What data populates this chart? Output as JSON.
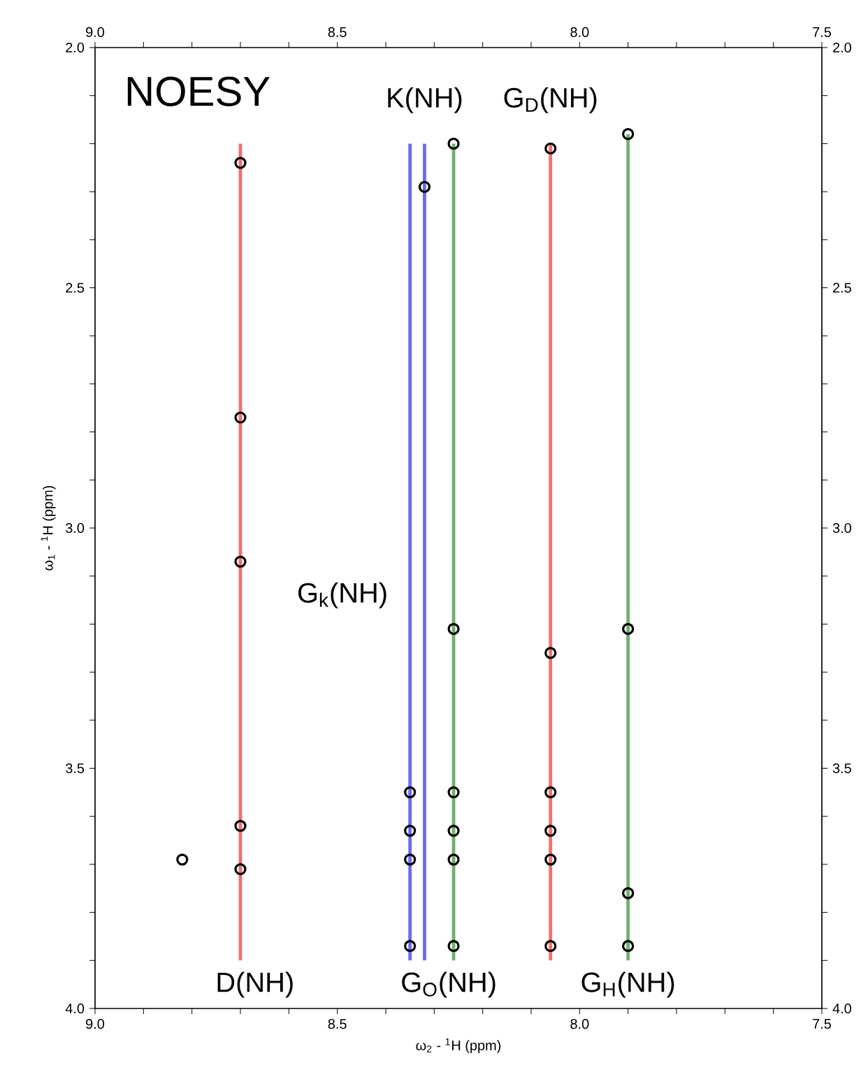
{
  "chart_data": {
    "type": "scatter",
    "title": "NOESY",
    "xlabel": "ω$_{2}$ - $^{1}$H  (ppm)",
    "ylabel": "ω$_{1}$ - $^{1}$H (ppm)",
    "xlim": [
      9.0,
      7.5
    ],
    "ylim": [
      4.0,
      2.0
    ],
    "x2lim": [
      9.0,
      7.5
    ],
    "y2lim": [
      4.0,
      2.0
    ],
    "xticks": [
      {
        "value": 9.0,
        "label": "9.0"
      },
      {
        "value": 8.9,
        "label": null
      },
      {
        "value": 8.8,
        "label": null
      },
      {
        "value": 8.7,
        "label": null
      },
      {
        "value": 8.6,
        "label": null
      },
      {
        "value": 8.5,
        "label": "8.5"
      },
      {
        "value": 8.4,
        "label": null
      },
      {
        "value": 8.3,
        "label": null
      },
      {
        "value": 8.2,
        "label": null
      },
      {
        "value": 8.1,
        "label": null
      },
      {
        "value": 8.0,
        "label": "8.0"
      },
      {
        "value": 7.9,
        "label": null
      },
      {
        "value": 7.8,
        "label": null
      },
      {
        "value": 7.7,
        "label": null
      },
      {
        "value": 7.6,
        "label": null
      },
      {
        "value": 7.5,
        "label": "7.5"
      }
    ],
    "x2ticks": [
      {
        "value": 9.0,
        "label": "9.0"
      },
      {
        "value": 8.9,
        "label": null
      },
      {
        "value": 8.8,
        "label": null
      },
      {
        "value": 8.7,
        "label": null
      },
      {
        "value": 8.6,
        "label": null
      },
      {
        "value": 8.5,
        "label": "8.5"
      },
      {
        "value": 8.4,
        "label": null
      },
      {
        "value": 8.3,
        "label": null
      },
      {
        "value": 8.2,
        "label": null
      },
      {
        "value": 8.1,
        "label": null
      },
      {
        "value": 8.0,
        "label": "8.0"
      },
      {
        "value": 7.9,
        "label": null
      },
      {
        "value": 7.8,
        "label": null
      },
      {
        "value": 7.7,
        "label": null
      },
      {
        "value": 7.6,
        "label": null
      },
      {
        "value": 7.5,
        "label": "7.5"
      }
    ],
    "yticks": [
      {
        "value": 2.0,
        "label": "2.0"
      },
      {
        "value": 2.1,
        "label": null
      },
      {
        "value": 2.2,
        "label": null
      },
      {
        "value": 2.3,
        "label": null
      },
      {
        "value": 2.4,
        "label": null
      },
      {
        "value": 2.5,
        "label": "2.5"
      },
      {
        "value": 2.6,
        "label": null
      },
      {
        "value": 2.7,
        "label": null
      },
      {
        "value": 2.8,
        "label": null
      },
      {
        "value": 2.9,
        "label": null
      },
      {
        "value": 3.0,
        "label": "3.0"
      },
      {
        "value": 3.1,
        "label": null
      },
      {
        "value": 3.2,
        "label": null
      },
      {
        "value": 3.3,
        "label": null
      },
      {
        "value": 3.4,
        "label": null
      },
      {
        "value": 3.5,
        "label": "3.5"
      },
      {
        "value": 3.6,
        "label": null
      },
      {
        "value": 3.7,
        "label": null
      },
      {
        "value": 3.8,
        "label": null
      },
      {
        "value": 3.9,
        "label": null
      },
      {
        "value": 4.0,
        "label": "4.0"
      }
    ],
    "y2ticks": [
      {
        "value": 2.0,
        "label": "2.0"
      },
      {
        "value": 2.1,
        "label": null
      },
      {
        "value": 2.2,
        "label": null
      },
      {
        "value": 2.3,
        "label": null
      },
      {
        "value": 2.4,
        "label": null
      },
      {
        "value": 2.5,
        "label": "2.5"
      },
      {
        "value": 2.6,
        "label": null
      },
      {
        "value": 2.7,
        "label": null
      },
      {
        "value": 2.8,
        "label": null
      },
      {
        "value": 2.9,
        "label": null
      },
      {
        "value": 3.0,
        "label": "3.0"
      },
      {
        "value": 3.1,
        "label": null
      },
      {
        "value": 3.2,
        "label": null
      },
      {
        "value": 3.3,
        "label": null
      },
      {
        "value": 3.4,
        "label": null
      },
      {
        "value": 3.5,
        "label": "3.5"
      },
      {
        "value": 3.6,
        "label": null
      },
      {
        "value": 3.7,
        "label": null
      },
      {
        "value": 3.8,
        "label": null
      },
      {
        "value": 3.9,
        "label": null
      },
      {
        "value": 4.0,
        "label": "4.0"
      }
    ],
    "series": [
      {
        "type": "line",
        "name": "D(NH)",
        "color": "#f07070",
        "x": [
          8.7,
          8.7
        ],
        "values": [
          2.2,
          3.9
        ]
      },
      {
        "type": "line",
        "name": "G$_{k}$(NH)",
        "color": "#6a6af0",
        "x": [
          8.35,
          8.35
        ],
        "values": [
          2.2,
          3.9
        ]
      },
      {
        "type": "line",
        "name": "K(NH)",
        "color": "#6a6af0",
        "x": [
          8.32,
          8.32
        ],
        "values": [
          2.2,
          3.9
        ]
      },
      {
        "type": "line",
        "name": "G$_{O}$(NH)",
        "color": "#70b070",
        "x": [
          8.26,
          8.26
        ],
        "values": [
          2.2,
          3.9
        ]
      },
      {
        "type": "line",
        "name": "G$_{D}$(NH)",
        "color": "#f07070",
        "x": [
          8.06,
          8.06
        ],
        "values": [
          2.2,
          3.9
        ]
      },
      {
        "type": "line",
        "name": "G$_{H}$(NH)",
        "color": "#70b070",
        "x": [
          7.9,
          7.9
        ],
        "values": [
          2.18,
          3.9
        ]
      },
      {
        "marker": "circle",
        "color": "#000000",
        "x": [
          8.7,
          8.7,
          8.7,
          8.7,
          8.7,
          8.82,
          8.32,
          8.35,
          8.35,
          8.35,
          8.35,
          8.26,
          8.26,
          8.26,
          8.26,
          8.26,
          8.26,
          8.06,
          8.06,
          8.06,
          8.06,
          8.06,
          8.06,
          7.9,
          7.9,
          7.9,
          7.9
        ],
        "values": [
          2.24,
          2.77,
          3.07,
          3.62,
          3.71,
          3.69,
          2.29,
          3.55,
          3.63,
          3.69,
          3.87,
          2.2,
          3.21,
          3.55,
          3.63,
          3.69,
          3.87,
          2.21,
          3.26,
          3.55,
          3.63,
          3.69,
          3.87,
          2.18,
          3.21,
          3.76,
          3.87
        ]
      }
    ]
  }
}
